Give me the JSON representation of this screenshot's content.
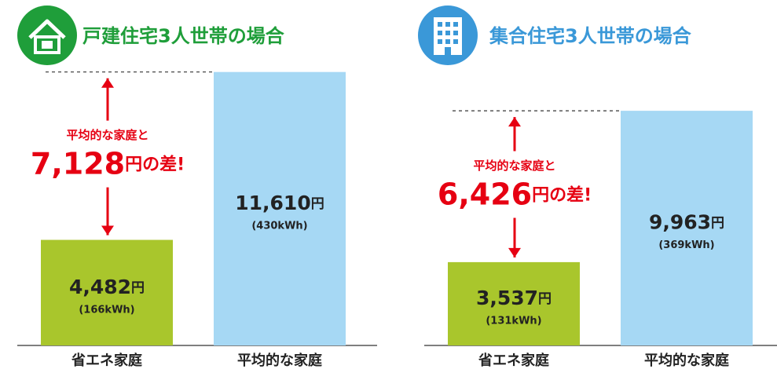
{
  "chart_data": [
    {
      "type": "bar",
      "title": "戸建住宅3人世帯の場合",
      "title_color": "#1f9e3a",
      "categories": [
        "省エネ家庭",
        "平均的な家庭"
      ],
      "values": [
        4482,
        11610
      ],
      "value_labels": [
        "4,482",
        "11,610"
      ],
      "unit": "円",
      "energy_labels": [
        "(166kWh)",
        "(430kWh)"
      ],
      "colors": [
        "#a9c62c",
        "#a6d8f4"
      ],
      "difference_caption": "平均的な家庭と",
      "difference": 7128,
      "difference_label": "7,128",
      "difference_suffix": "円の差!"
    },
    {
      "type": "bar",
      "title": "集合住宅3人世帯の場合",
      "title_color": "#3a98d8",
      "categories": [
        "省エネ家庭",
        "平均的な家庭"
      ],
      "values": [
        3537,
        9963
      ],
      "value_labels": [
        "3,537",
        "9,963"
      ],
      "unit": "円",
      "energy_labels": [
        "(131kWh)",
        "(369kWh)"
      ],
      "colors": [
        "#a9c62c",
        "#a6d8f4"
      ],
      "difference_caption": "平均的な家庭と",
      "difference": 6426,
      "difference_label": "6,426",
      "difference_suffix": "円の差!"
    }
  ]
}
